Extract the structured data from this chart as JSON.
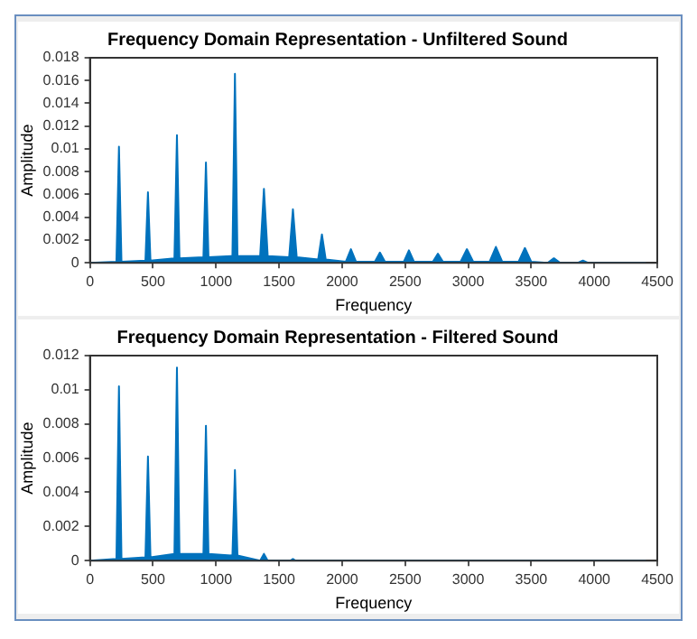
{
  "chart_data": [
    {
      "type": "area",
      "title": "Frequency Domain Representation - Unfiltered Sound",
      "xlabel": "Frequency",
      "ylabel": "Amplitude",
      "xlim": [
        0,
        4500
      ],
      "xticks": [
        0,
        500,
        1000,
        1500,
        2000,
        2500,
        3000,
        3500,
        4000,
        4500
      ],
      "ylim": [
        0,
        0.018
      ],
      "yticks": [
        0,
        0.002,
        0.004,
        0.006,
        0.008,
        0.01,
        0.012,
        0.014,
        0.016,
        0.018
      ],
      "grid": false,
      "legend": false,
      "marker": "none",
      "line_style": "solid",
      "series": [
        {
          "color": "#0072bd",
          "x": [
            0,
            210,
            230,
            250,
            440,
            460,
            480,
            670,
            690,
            710,
            900,
            920,
            940,
            1130,
            1150,
            1170,
            1350,
            1380,
            1410,
            1580,
            1610,
            1640,
            1810,
            1840,
            1870,
            2030,
            2070,
            2110,
            2260,
            2300,
            2340,
            2490,
            2530,
            2570,
            2720,
            2760,
            2800,
            2940,
            2990,
            3040,
            3170,
            3220,
            3270,
            3400,
            3450,
            3500,
            3630,
            3680,
            3730,
            3870,
            3910,
            3950,
            4410
          ],
          "values": [
            0,
            0.0001,
            0.0102,
            0.0001,
            0.0002,
            0.0062,
            0.0002,
            0.0004,
            0.0112,
            0.0004,
            0.0005,
            0.0088,
            0.0005,
            0.0006,
            0.0166,
            0.0006,
            0.0006,
            0.0065,
            0.0006,
            0.0005,
            0.0047,
            0.0005,
            0.0003,
            0.0025,
            0.0003,
            0.0001,
            0.0012,
            0.0001,
            0.0001,
            0.0009,
            0.0001,
            0.0001,
            0.0011,
            0.0001,
            0.0001,
            0.0008,
            0.0001,
            0.0001,
            0.0012,
            0.0001,
            0.0001,
            0.0014,
            0.0001,
            0.0001,
            0.0013,
            0.0001,
            0,
            0.0004,
            0,
            0,
            0.0002,
            0,
            0
          ]
        }
      ]
    },
    {
      "type": "area",
      "title": "Frequency Domain Representation - Filtered Sound",
      "xlabel": "Frequency",
      "ylabel": "Amplitude",
      "xlim": [
        0,
        4500
      ],
      "xticks": [
        0,
        500,
        1000,
        1500,
        2000,
        2500,
        3000,
        3500,
        4000,
        4500
      ],
      "ylim": [
        0,
        0.012
      ],
      "yticks": [
        0,
        0.002,
        0.004,
        0.006,
        0.008,
        0.01,
        0.012
      ],
      "grid": false,
      "legend": false,
      "marker": "none",
      "line_style": "solid",
      "series": [
        {
          "color": "#0072bd",
          "x": [
            0,
            210,
            230,
            250,
            440,
            460,
            480,
            670,
            690,
            710,
            900,
            920,
            940,
            1130,
            1150,
            1170,
            1350,
            1380,
            1410,
            1590,
            1610,
            1630,
            4410
          ],
          "values": [
            0,
            0.0001,
            0.0102,
            0.0001,
            0.0002,
            0.0061,
            0.0002,
            0.0004,
            0.0113,
            0.0004,
            0.0004,
            0.0079,
            0.0004,
            0.0003,
            0.0053,
            0.0003,
            0,
            0.0004,
            0,
            0,
            0.0001,
            0,
            0
          ]
        }
      ]
    }
  ]
}
